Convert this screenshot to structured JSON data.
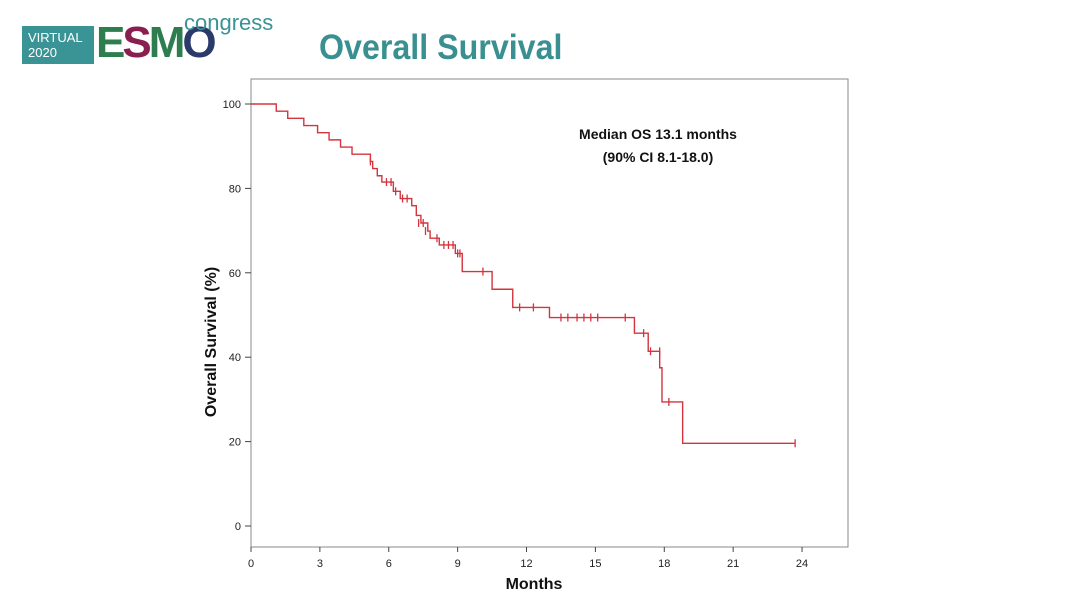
{
  "logo": {
    "virtual": "VIRTUAL",
    "year": "2020",
    "esmo_letters": [
      "E",
      "S",
      "M",
      "O"
    ],
    "congress": "congress"
  },
  "slide_title": "Overall Survival",
  "colors": {
    "curve": "#d3343f",
    "title": "#3a8f90",
    "axis": "#222222"
  },
  "chart_data": {
    "type": "line",
    "subtype": "kaplan-meier-step",
    "xlabel": "Months",
    "ylabel": "Overall Survival (%)",
    "xlim": [
      0,
      26
    ],
    "ylim": [
      -5,
      103
    ],
    "xticks": [
      0,
      3,
      6,
      9,
      12,
      15,
      18,
      21,
      24
    ],
    "yticks": [
      0,
      20,
      40,
      60,
      80,
      100
    ],
    "annotation": [
      "Median OS 13.1 months",
      "(90% CI 8.1-18.0)"
    ],
    "grid": false,
    "series": [
      {
        "steps": [
          [
            0,
            100
          ],
          [
            1.1,
            98.3
          ],
          [
            1.6,
            96.6
          ],
          [
            2.3,
            94.9
          ],
          [
            2.9,
            93.2
          ],
          [
            3.4,
            91.5
          ],
          [
            3.9,
            89.8
          ],
          [
            4.4,
            88.1
          ],
          [
            5.2,
            86.4
          ],
          [
            5.3,
            84.7
          ],
          [
            5.5,
            83.0
          ],
          [
            5.7,
            81.5
          ],
          [
            6.2,
            79.3
          ],
          [
            6.5,
            77.6
          ],
          [
            7.0,
            75.9
          ],
          [
            7.2,
            73.6
          ],
          [
            7.4,
            71.8
          ],
          [
            7.7,
            69.9
          ],
          [
            7.8,
            68.2
          ],
          [
            8.2,
            66.6
          ],
          [
            8.9,
            64.6
          ],
          [
            9.2,
            60.3
          ],
          [
            10.5,
            56.1
          ],
          [
            11.4,
            51.8
          ],
          [
            13.0,
            49.4
          ],
          [
            16.7,
            45.7
          ],
          [
            17.3,
            41.4
          ],
          [
            17.8,
            37.5
          ],
          [
            17.9,
            29.4
          ],
          [
            18.8,
            19.6
          ],
          [
            23.7,
            19.6
          ]
        ],
        "censored": [
          [
            5.2,
            86.4
          ],
          [
            5.9,
            81.5
          ],
          [
            6.1,
            81.5
          ],
          [
            6.3,
            79.3
          ],
          [
            6.6,
            77.6
          ],
          [
            6.8,
            77.6
          ],
          [
            7.3,
            71.8
          ],
          [
            7.5,
            71.8
          ],
          [
            7.6,
            69.9
          ],
          [
            8.1,
            68.2
          ],
          [
            8.4,
            66.6
          ],
          [
            8.6,
            66.6
          ],
          [
            8.8,
            66.6
          ],
          [
            9.0,
            64.6
          ],
          [
            9.1,
            64.6
          ],
          [
            10.1,
            60.3
          ],
          [
            11.7,
            51.8
          ],
          [
            12.3,
            51.8
          ],
          [
            13.5,
            49.4
          ],
          [
            13.8,
            49.4
          ],
          [
            14.2,
            49.4
          ],
          [
            14.5,
            49.4
          ],
          [
            14.8,
            49.4
          ],
          [
            15.1,
            49.4
          ],
          [
            16.3,
            49.4
          ],
          [
            17.1,
            45.7
          ],
          [
            17.4,
            41.4
          ],
          [
            17.8,
            41.4
          ],
          [
            18.2,
            29.4
          ],
          [
            23.7,
            19.6
          ]
        ]
      }
    ]
  }
}
